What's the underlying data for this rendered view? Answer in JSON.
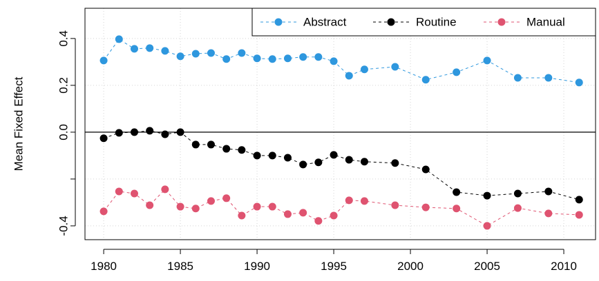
{
  "chart_data": {
    "type": "line",
    "y_label": "Mean Fixed Effect",
    "x": [
      1980,
      1981,
      1982,
      1983,
      1984,
      1985,
      1986,
      1987,
      1988,
      1989,
      1990,
      1991,
      1992,
      1993,
      1994,
      1995,
      1996,
      1997,
      1999,
      2001,
      2003,
      2005,
      2007,
      2009,
      2011
    ],
    "series": [
      {
        "name": "Abstract",
        "color": "#2e97de",
        "values": [
          0.306,
          0.397,
          0.356,
          0.359,
          0.347,
          0.324,
          0.335,
          0.338,
          0.312,
          0.338,
          0.315,
          0.312,
          0.315,
          0.321,
          0.321,
          0.303,
          0.241,
          0.268,
          0.279,
          0.224,
          0.256,
          0.306,
          0.232,
          0.232,
          0.212
        ]
      },
      {
        "name": "Routine",
        "color": "#000000",
        "values": [
          -0.026,
          -0.003,
          0,
          0.006,
          -0.009,
          0,
          -0.053,
          -0.053,
          -0.071,
          -0.076,
          -0.1,
          -0.1,
          -0.109,
          -0.138,
          -0.129,
          -0.097,
          -0.118,
          -0.126,
          -0.132,
          -0.159,
          -0.256,
          -0.271,
          -0.262,
          -0.253,
          -0.288
        ]
      },
      {
        "name": "Manual",
        "color": "#df5370",
        "values": [
          -0.338,
          -0.253,
          -0.262,
          -0.312,
          -0.244,
          -0.318,
          -0.326,
          -0.294,
          -0.282,
          -0.356,
          -0.318,
          -0.318,
          -0.35,
          -0.344,
          -0.379,
          -0.356,
          -0.291,
          -0.294,
          -0.312,
          -0.321,
          -0.326,
          -0.4,
          -0.324,
          -0.347,
          -0.353
        ]
      }
    ],
    "xlim": [
      1978.78,
      2012.07
    ],
    "ylim": [
      -0.459,
      0.529
    ],
    "xticks": [
      1980,
      1985,
      1990,
      1995,
      2000,
      2005,
      2010
    ],
    "yticks": [
      0.4,
      0.2,
      {
        "value": 0,
        "label": "0.0"
      },
      {
        "value": -0.2,
        "label": null
      },
      -0.4
    ],
    "grid": true,
    "zero_line": true,
    "legend": "top-right"
  }
}
